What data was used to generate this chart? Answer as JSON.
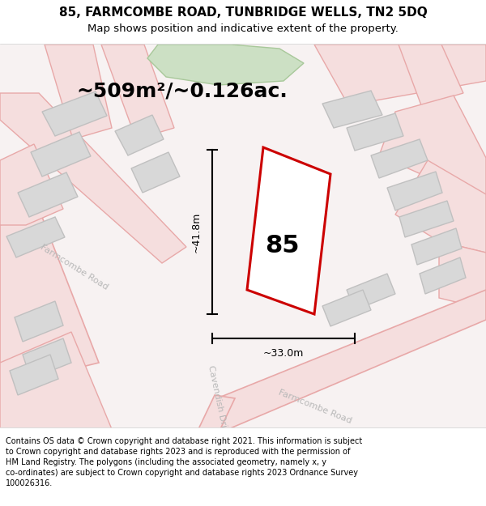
{
  "title": "85, FARMCOMBE ROAD, TUNBRIDGE WELLS, TN2 5DQ",
  "subtitle": "Map shows position and indicative extent of the property.",
  "area_label": "~509m²/~0.126ac.",
  "number_label": "85",
  "width_label": "~33.0m",
  "height_label": "~41.8m",
  "footer_lines": [
    "Contains OS data © Crown copyright and database right 2021. This information is subject",
    "to Crown copyright and database rights 2023 and is reproduced with the permission of",
    "HM Land Registry. The polygons (including the associated geometry, namely x, y",
    "co-ordinates) are subject to Crown copyright and database rights 2023 Ordnance Survey",
    "100026316."
  ],
  "bg_color": "#ffffff",
  "map_bg": "#f7f2f2",
  "road_fill": "#f5dede",
  "road_stroke": "#e8a8a8",
  "block_fill": "#d8d8d8",
  "block_stroke": "#c0c0c0",
  "green_fill": "#cce0c4",
  "green_stroke": "#a8c89a",
  "property_stroke": "#cc0000",
  "property_fill": "#ffffff"
}
